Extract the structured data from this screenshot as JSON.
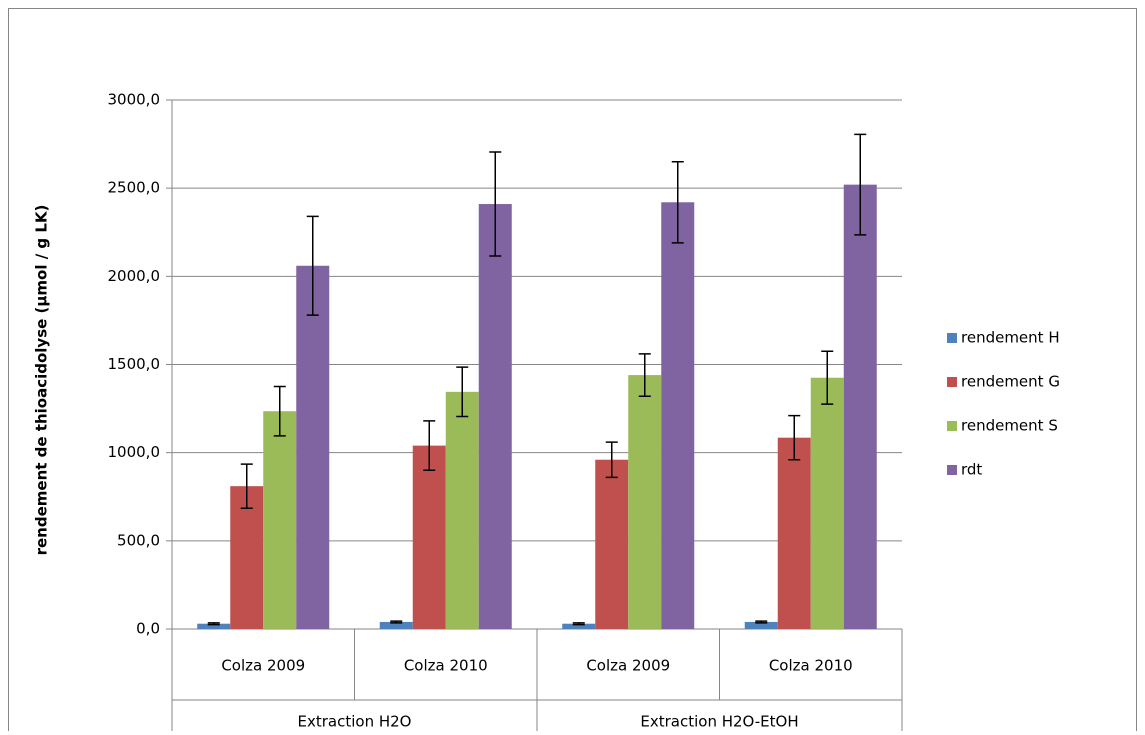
{
  "chart_data": {
    "type": "bar",
    "y_label": "rendement de thioacidolyse  (µmol / g LK)",
    "categories": [
      "Colza 2009",
      "Colza 2010",
      "Colza 2009",
      "Colza 2010"
    ],
    "groups": [
      "Extraction H2O",
      "Extraction H2O-EtOH"
    ],
    "series": [
      {
        "name": "rendement H",
        "color": "#4f81bd",
        "values": [
          30,
          40,
          30,
          40
        ],
        "errors": [
          5,
          5,
          5,
          5
        ]
      },
      {
        "name": "rendement G",
        "color": "#c0504d",
        "values": [
          810,
          1040,
          960,
          1085
        ],
        "errors": [
          125,
          140,
          100,
          125
        ]
      },
      {
        "name": "rendement S",
        "color": "#9bbb59",
        "values": [
          1235,
          1345,
          1440,
          1425
        ],
        "errors": [
          140,
          140,
          120,
          150
        ]
      },
      {
        "name": "rdt",
        "color": "#8064a2",
        "values": [
          2060,
          2410,
          2420,
          2520
        ],
        "errors": [
          280,
          295,
          230,
          285
        ]
      }
    ],
    "ylim": [
      0,
      3000
    ],
    "yticks": [
      {
        "value": 0,
        "label": "0,0"
      },
      {
        "value": 500,
        "label": "500,0"
      },
      {
        "value": 1000,
        "label": "1000,0"
      },
      {
        "value": 1500,
        "label": "1500,0"
      },
      {
        "value": 2000,
        "label": "2000,0"
      },
      {
        "value": 2500,
        "label": "2500,0"
      },
      {
        "value": 3000,
        "label": "3000,0"
      }
    ],
    "grid": true,
    "legend": "right"
  }
}
